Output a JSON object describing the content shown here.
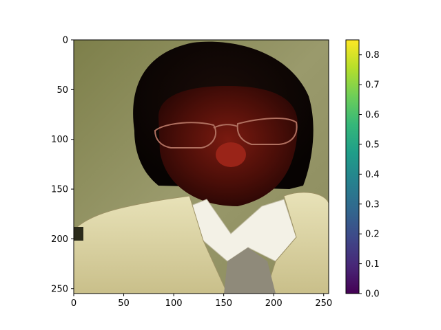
{
  "chart_data": {
    "type": "heatmap",
    "title": "",
    "xlabel": "",
    "ylabel": "",
    "image": {
      "description_free": true,
      "xlim": [
        0,
        255
      ],
      "ylim": [
        255,
        0
      ],
      "x_ticks": [
        0,
        50,
        100,
        150,
        200,
        250
      ],
      "y_ticks": [
        0,
        50,
        100,
        150,
        200,
        250
      ]
    },
    "colorbar": {
      "colormap": "viridis",
      "range": [
        0.0,
        0.85
      ],
      "ticks": [
        0.0,
        0.1,
        0.2,
        0.3,
        0.4,
        0.5,
        0.6,
        0.7,
        0.8
      ],
      "tick_labels": [
        "0.0",
        "0.1",
        "0.2",
        "0.3",
        "0.4",
        "0.5",
        "0.6",
        "0.7",
        "0.8"
      ],
      "colors": [
        "#440154",
        "#482878",
        "#3e4989",
        "#31688e",
        "#26828e",
        "#1f9e89",
        "#35b779",
        "#6ece58",
        "#b5de2b",
        "#fde725"
      ]
    }
  }
}
